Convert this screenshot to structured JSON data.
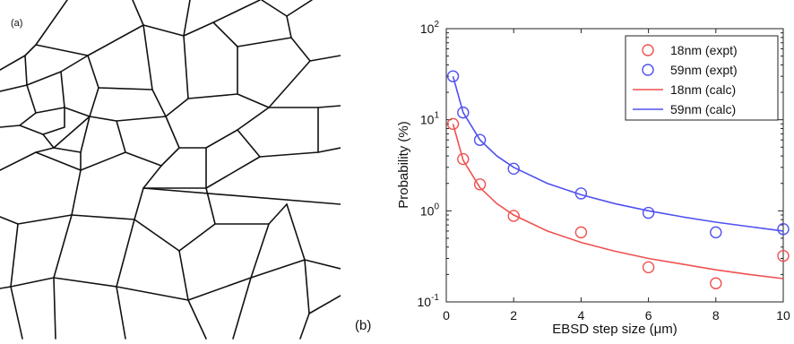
{
  "panel_a": {
    "label": "(a)"
  },
  "panel_b": {
    "label": "(b)"
  },
  "chart_data": {
    "type": "scatter",
    "title": "",
    "xlabel": "EBSD step size (μm)",
    "ylabel": "Probability (%)",
    "xlim": [
      0,
      10
    ],
    "ylim": [
      0.1,
      100
    ],
    "yscale": "log",
    "xticks": [
      "0",
      "2",
      "4",
      "6",
      "8",
      "10"
    ],
    "xtick_values": [
      0,
      2,
      4,
      6,
      8,
      10
    ],
    "yticks": [
      {
        "base": "10",
        "exp": "-1",
        "value": 0.1
      },
      {
        "base": "10",
        "exp": "0",
        "value": 1
      },
      {
        "base": "10",
        "exp": "1",
        "value": 10
      },
      {
        "base": "10",
        "exp": "2",
        "value": 100
      }
    ],
    "grid": false,
    "legend_position": "top-right",
    "series": [
      {
        "name": "18nm (expt)",
        "kind": "markers",
        "color": "#f05050",
        "x": [
          0.2,
          0.5,
          1,
          2,
          4,
          6,
          8,
          10
        ],
        "y": [
          9.0,
          3.7,
          1.95,
          0.88,
          0.58,
          0.24,
          0.16,
          0.32
        ]
      },
      {
        "name": "59nm (expt)",
        "kind": "markers",
        "color": "#5050f0",
        "x": [
          0.2,
          0.5,
          1,
          2,
          4,
          6,
          8,
          10
        ],
        "y": [
          30,
          12,
          6.0,
          2.9,
          1.55,
          0.95,
          0.58,
          0.63
        ]
      },
      {
        "name": "18nm (calc)",
        "kind": "line",
        "color": "#f05050",
        "x": [
          0.2,
          0.5,
          1,
          1.5,
          2,
          3,
          4,
          5,
          6,
          7,
          8,
          9,
          10
        ],
        "y": [
          9.0,
          3.6,
          1.8,
          1.2,
          0.9,
          0.6,
          0.45,
          0.36,
          0.3,
          0.26,
          0.225,
          0.2,
          0.18
        ]
      },
      {
        "name": "59nm (calc)",
        "kind": "line",
        "color": "#5050f0",
        "x": [
          0.2,
          0.5,
          1,
          1.5,
          2,
          3,
          4,
          5,
          6,
          7,
          8,
          9,
          10
        ],
        "y": [
          30,
          12,
          6.0,
          4.0,
          3.0,
          2.0,
          1.5,
          1.2,
          1.0,
          0.86,
          0.75,
          0.67,
          0.6
        ]
      }
    ]
  }
}
